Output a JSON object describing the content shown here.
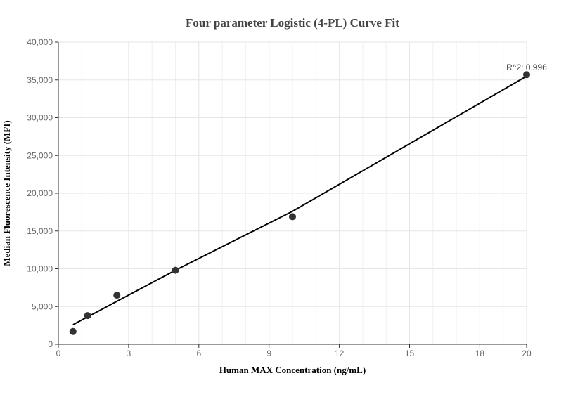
{
  "chart_data": {
    "type": "scatter",
    "title": "Four parameter Logistic (4-PL) Curve Fit",
    "xlabel": "Human MAX Concentration (ng/mL)",
    "ylabel": "Median Fluorescence Intensity (MFI)",
    "xlim": [
      0,
      20
    ],
    "ylim": [
      0,
      40000
    ],
    "x_ticks": [
      0,
      3,
      6,
      9,
      12,
      15,
      18,
      20
    ],
    "x_tick_labels": [
      "0",
      "3",
      "6",
      "9",
      "12",
      "15",
      "18",
      "20"
    ],
    "y_ticks": [
      0,
      5000,
      10000,
      15000,
      20000,
      25000,
      30000,
      35000,
      40000
    ],
    "y_tick_labels": [
      "0",
      "5,000",
      "10,000",
      "15,000",
      "20,000",
      "25,000",
      "30,000",
      "35,000",
      "40,000"
    ],
    "grid": true,
    "series": [
      {
        "type": "scatter",
        "x": [
          0.625,
          1.25,
          2.5,
          5,
          10,
          20
        ],
        "y": [
          1700,
          3800,
          6500,
          9800,
          16900,
          35700
        ]
      },
      {
        "type": "line",
        "x": [
          0.625,
          2.5,
          5,
          10,
          20
        ],
        "y": [
          2600,
          5700,
          9800,
          17600,
          35500
        ]
      }
    ],
    "annotation": "R^2: 0.996",
    "colors": {
      "points": "#333333",
      "curve": "#000000",
      "grid": "#e6e6e6",
      "axis": "#333333"
    }
  }
}
